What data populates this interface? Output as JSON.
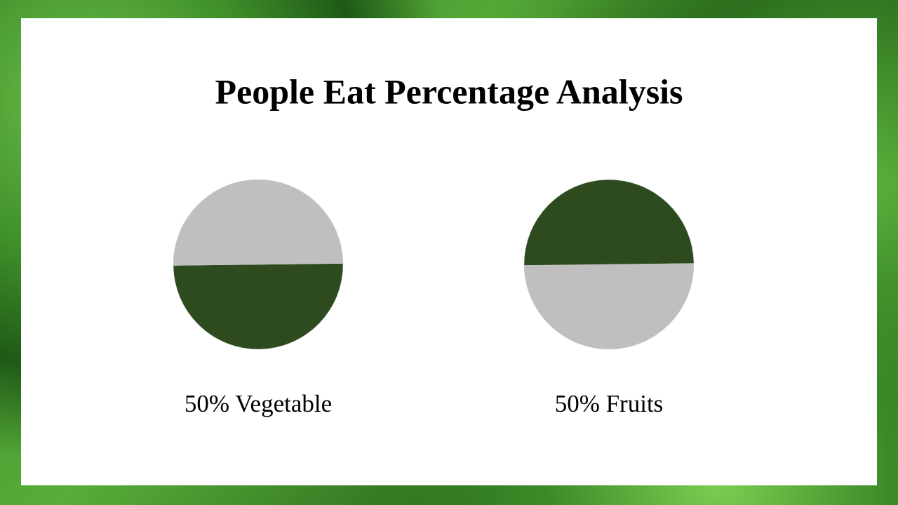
{
  "title": "People Eat Percentage Analysis",
  "chart_data": [
    {
      "type": "pie",
      "values": [
        50,
        50
      ],
      "colors": [
        "#2e4b20",
        "#bfbfbf"
      ],
      "caption": "50% Vegetable"
    },
    {
      "type": "pie",
      "values": [
        50,
        50
      ],
      "colors": [
        "#bfbfbf",
        "#2e4b20"
      ],
      "caption": "50% Fruits"
    }
  ]
}
